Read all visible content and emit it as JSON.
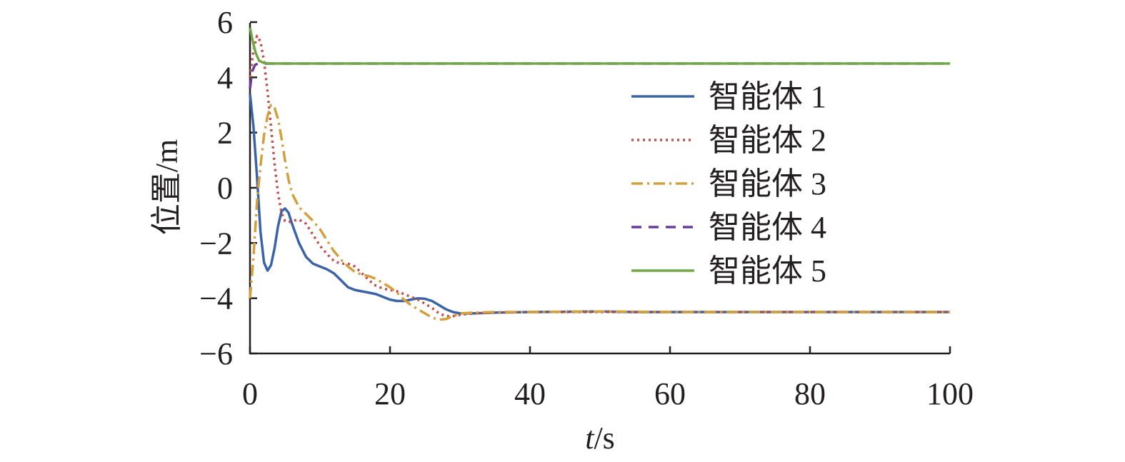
{
  "chart_data": {
    "type": "line",
    "title": "",
    "xlabel_italic": "t",
    "xlabel_rest": "/s",
    "ylabel": "位置/m",
    "xlim": [
      0,
      100
    ],
    "ylim": [
      -6,
      6
    ],
    "xticks": [
      0,
      20,
      40,
      60,
      80,
      100
    ],
    "yticks": [
      -6,
      -4,
      -2,
      0,
      2,
      4,
      6
    ],
    "xtick_labels": [
      "0",
      "20",
      "40",
      "60",
      "80",
      "100"
    ],
    "ytick_labels": [
      "−6",
      "−4",
      "−2",
      "0",
      "2",
      "4",
      "6"
    ],
    "grid": false,
    "legend_position": "top-right",
    "series": [
      {
        "name": "智能体 1",
        "color": "#3b64a8",
        "dash": "solid",
        "points": [
          [
            0,
            3.4
          ],
          [
            0.5,
            2.2
          ],
          [
            1,
            0.4
          ],
          [
            1.5,
            -1.6
          ],
          [
            2,
            -2.7
          ],
          [
            2.5,
            -3.0
          ],
          [
            3,
            -2.8
          ],
          [
            3.5,
            -2.2
          ],
          [
            4,
            -1.4
          ],
          [
            4.5,
            -0.85
          ],
          [
            5,
            -0.75
          ],
          [
            5.5,
            -0.9
          ],
          [
            6,
            -1.3
          ],
          [
            7,
            -2.0
          ],
          [
            8,
            -2.5
          ],
          [
            9,
            -2.75
          ],
          [
            10,
            -2.85
          ],
          [
            11,
            -2.95
          ],
          [
            12,
            -3.1
          ],
          [
            13,
            -3.35
          ],
          [
            14,
            -3.6
          ],
          [
            15,
            -3.7
          ],
          [
            16,
            -3.75
          ],
          [
            17,
            -3.8
          ],
          [
            18,
            -3.85
          ],
          [
            19,
            -3.95
          ],
          [
            20,
            -4.05
          ],
          [
            21,
            -4.1
          ],
          [
            22,
            -4.1
          ],
          [
            23,
            -4.05
          ],
          [
            24,
            -4.0
          ],
          [
            25,
            -4.02
          ],
          [
            26,
            -4.1
          ],
          [
            27,
            -4.25
          ],
          [
            28,
            -4.4
          ],
          [
            29,
            -4.5
          ],
          [
            30,
            -4.55
          ],
          [
            32,
            -4.55
          ],
          [
            35,
            -4.52
          ],
          [
            40,
            -4.5
          ],
          [
            45,
            -4.49
          ],
          [
            50,
            -4.48
          ],
          [
            55,
            -4.5
          ],
          [
            60,
            -4.5
          ],
          [
            70,
            -4.5
          ],
          [
            80,
            -4.5
          ],
          [
            90,
            -4.5
          ],
          [
            100,
            -4.5
          ]
        ]
      },
      {
        "name": "智能体 2",
        "color": "#c0504d",
        "dash": "dotted",
        "points": [
          [
            0,
            4.0
          ],
          [
            0.5,
            5.0
          ],
          [
            1,
            5.5
          ],
          [
            1.5,
            5.3
          ],
          [
            2,
            4.6
          ],
          [
            2.5,
            3.5
          ],
          [
            3,
            2.2
          ],
          [
            3.5,
            0.9
          ],
          [
            4,
            -0.2
          ],
          [
            4.5,
            -0.9
          ],
          [
            5,
            -1.2
          ],
          [
            5.5,
            -1.25
          ],
          [
            6,
            -1.2
          ],
          [
            7,
            -1.15
          ],
          [
            8,
            -1.3
          ],
          [
            9,
            -1.7
          ],
          [
            10,
            -2.1
          ],
          [
            11,
            -2.4
          ],
          [
            12,
            -2.65
          ],
          [
            13,
            -2.75
          ],
          [
            14,
            -2.75
          ],
          [
            15,
            -2.85
          ],
          [
            16,
            -3.1
          ],
          [
            17,
            -3.35
          ],
          [
            18,
            -3.55
          ],
          [
            19,
            -3.65
          ],
          [
            20,
            -3.7
          ],
          [
            21,
            -3.75
          ],
          [
            22,
            -3.85
          ],
          [
            23,
            -3.95
          ],
          [
            24,
            -4.05
          ],
          [
            25,
            -4.2
          ],
          [
            26,
            -4.35
          ],
          [
            27,
            -4.55
          ],
          [
            28,
            -4.65
          ],
          [
            29,
            -4.65
          ],
          [
            30,
            -4.6
          ],
          [
            32,
            -4.55
          ],
          [
            35,
            -4.52
          ],
          [
            40,
            -4.5
          ],
          [
            50,
            -4.5
          ],
          [
            60,
            -4.5
          ],
          [
            70,
            -4.5
          ],
          [
            80,
            -4.5
          ],
          [
            90,
            -4.5
          ],
          [
            100,
            -4.5
          ]
        ]
      },
      {
        "name": "智能体 3",
        "color": "#d4a03a",
        "dash": "dashdot",
        "points": [
          [
            0,
            -4.0
          ],
          [
            0.5,
            -2.5
          ],
          [
            1,
            -0.5
          ],
          [
            1.5,
            0.8
          ],
          [
            2,
            1.9
          ],
          [
            2.5,
            2.6
          ],
          [
            3,
            3.0
          ],
          [
            3.5,
            2.9
          ],
          [
            4,
            2.5
          ],
          [
            4.5,
            1.8
          ],
          [
            5,
            1.0
          ],
          [
            5.5,
            0.3
          ],
          [
            6,
            -0.2
          ],
          [
            7,
            -0.7
          ],
          [
            8,
            -0.95
          ],
          [
            9,
            -1.2
          ],
          [
            10,
            -1.5
          ],
          [
            11,
            -1.9
          ],
          [
            12,
            -2.3
          ],
          [
            13,
            -2.6
          ],
          [
            14,
            -2.85
          ],
          [
            15,
            -3.05
          ],
          [
            16,
            -3.15
          ],
          [
            17,
            -3.2
          ],
          [
            18,
            -3.3
          ],
          [
            19,
            -3.45
          ],
          [
            20,
            -3.6
          ],
          [
            21,
            -3.8
          ],
          [
            22,
            -4.05
          ],
          [
            23,
            -4.25
          ],
          [
            24,
            -4.4
          ],
          [
            25,
            -4.55
          ],
          [
            26,
            -4.7
          ],
          [
            27,
            -4.78
          ],
          [
            28,
            -4.75
          ],
          [
            29,
            -4.65
          ],
          [
            30,
            -4.55
          ],
          [
            32,
            -4.52
          ],
          [
            35,
            -4.5
          ],
          [
            40,
            -4.5
          ],
          [
            50,
            -4.48
          ],
          [
            60,
            -4.5
          ],
          [
            70,
            -4.5
          ],
          [
            80,
            -4.5
          ],
          [
            90,
            -4.5
          ],
          [
            100,
            -4.5
          ]
        ]
      },
      {
        "name": "智能体 4",
        "color": "#6a3d9a",
        "dash": "dashed",
        "points": [
          [
            0,
            3.6
          ],
          [
            0.3,
            4.2
          ],
          [
            0.7,
            4.45
          ],
          [
            1.2,
            4.5
          ],
          [
            2,
            4.5
          ],
          [
            100,
            4.5
          ]
        ]
      },
      {
        "name": "智能体 5",
        "color": "#70a845",
        "dash": "solid",
        "points": [
          [
            0,
            5.8
          ],
          [
            0.4,
            5.3
          ],
          [
            0.8,
            4.9
          ],
          [
            1.3,
            4.6
          ],
          [
            2,
            4.52
          ],
          [
            3,
            4.5
          ],
          [
            100,
            4.5
          ]
        ]
      }
    ]
  }
}
